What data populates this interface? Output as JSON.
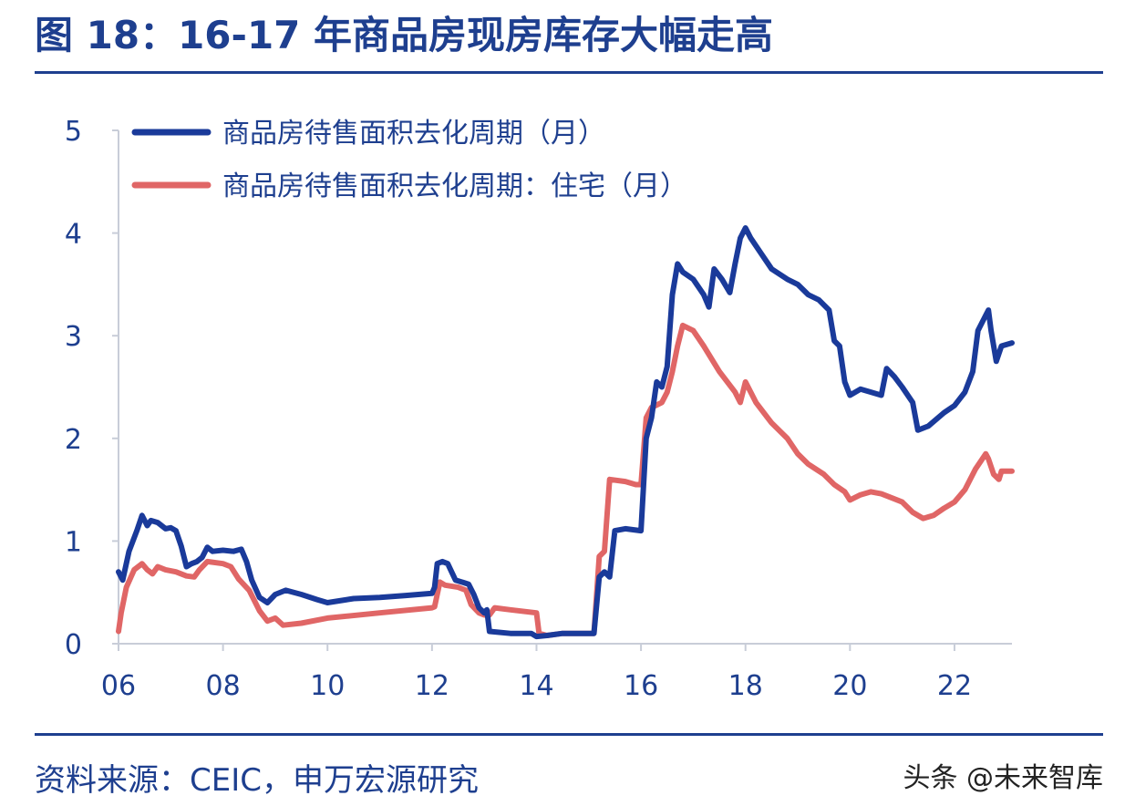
{
  "header": {
    "title": "图 18：16-17 年商品房现房库存大幅走高"
  },
  "footer": {
    "source": "资料来源：CEIC，申万宏源研究",
    "watermark": "头条 @未来智库"
  },
  "colors": {
    "brand": "#1e3f8f",
    "series_total": "#1a3a9a",
    "series_residential": "#e06666"
  },
  "chart_data": {
    "type": "line",
    "title": "",
    "xlabel": "",
    "ylabel": "",
    "xlim": [
      2006,
      2023.1
    ],
    "ylim": [
      0,
      5
    ],
    "x_ticks": [
      {
        "value": 2006,
        "label": "06"
      },
      {
        "value": 2008,
        "label": "08"
      },
      {
        "value": 2010,
        "label": "10"
      },
      {
        "value": 2012,
        "label": "12"
      },
      {
        "value": 2014,
        "label": "14"
      },
      {
        "value": 2016,
        "label": "16"
      },
      {
        "value": 2018,
        "label": "18"
      },
      {
        "value": 2020,
        "label": "20"
      },
      {
        "value": 2022,
        "label": "22"
      }
    ],
    "y_ticks": [
      {
        "value": 0,
        "label": "0"
      },
      {
        "value": 1,
        "label": "1"
      },
      {
        "value": 2,
        "label": "2"
      },
      {
        "value": 3,
        "label": "3"
      },
      {
        "value": 4,
        "label": "4"
      },
      {
        "value": 5,
        "label": "5"
      }
    ],
    "grid": false,
    "legend_position": "top-left",
    "series": [
      {
        "name": "商品房待售面积去化周期（月）",
        "color": "#1a3a9a",
        "points": [
          [
            2006.0,
            0.7
          ],
          [
            2006.08,
            0.62
          ],
          [
            2006.2,
            0.9
          ],
          [
            2006.35,
            1.1
          ],
          [
            2006.45,
            1.25
          ],
          [
            2006.55,
            1.15
          ],
          [
            2006.62,
            1.2
          ],
          [
            2006.75,
            1.18
          ],
          [
            2006.9,
            1.12
          ],
          [
            2007.0,
            1.13
          ],
          [
            2007.1,
            1.1
          ],
          [
            2007.2,
            0.95
          ],
          [
            2007.3,
            0.75
          ],
          [
            2007.4,
            0.78
          ],
          [
            2007.5,
            0.8
          ],
          [
            2007.6,
            0.84
          ],
          [
            2007.7,
            0.94
          ],
          [
            2007.8,
            0.9
          ],
          [
            2008.0,
            0.91
          ],
          [
            2008.2,
            0.9
          ],
          [
            2008.35,
            0.92
          ],
          [
            2008.45,
            0.8
          ],
          [
            2008.55,
            0.62
          ],
          [
            2008.7,
            0.45
          ],
          [
            2008.85,
            0.4
          ],
          [
            2009.0,
            0.48
          ],
          [
            2009.2,
            0.52
          ],
          [
            2009.5,
            0.48
          ],
          [
            2009.8,
            0.43
          ],
          [
            2010.0,
            0.4
          ],
          [
            2010.5,
            0.44
          ],
          [
            2011.0,
            0.45
          ],
          [
            2011.5,
            0.47
          ],
          [
            2012.0,
            0.49
          ],
          [
            2012.05,
            0.55
          ],
          [
            2012.1,
            0.78
          ],
          [
            2012.2,
            0.8
          ],
          [
            2012.3,
            0.78
          ],
          [
            2012.45,
            0.62
          ],
          [
            2012.7,
            0.58
          ],
          [
            2012.8,
            0.48
          ],
          [
            2012.9,
            0.35
          ],
          [
            2013.0,
            0.3
          ],
          [
            2013.05,
            0.33
          ],
          [
            2013.1,
            0.12
          ],
          [
            2013.5,
            0.1
          ],
          [
            2013.9,
            0.1
          ],
          [
            2014.0,
            0.07
          ],
          [
            2014.2,
            0.08
          ],
          [
            2014.5,
            0.1
          ],
          [
            2015.0,
            0.1
          ],
          [
            2015.1,
            0.1
          ],
          [
            2015.2,
            0.65
          ],
          [
            2015.3,
            0.7
          ],
          [
            2015.4,
            0.65
          ],
          [
            2015.5,
            1.1
          ],
          [
            2015.7,
            1.12
          ],
          [
            2016.0,
            1.1
          ],
          [
            2016.1,
            2.0
          ],
          [
            2016.2,
            2.2
          ],
          [
            2016.3,
            2.55
          ],
          [
            2016.4,
            2.5
          ],
          [
            2016.5,
            2.7
          ],
          [
            2016.6,
            3.4
          ],
          [
            2016.7,
            3.7
          ],
          [
            2016.8,
            3.62
          ],
          [
            2017.0,
            3.55
          ],
          [
            2017.2,
            3.4
          ],
          [
            2017.3,
            3.28
          ],
          [
            2017.4,
            3.65
          ],
          [
            2017.55,
            3.55
          ],
          [
            2017.7,
            3.42
          ],
          [
            2017.8,
            3.7
          ],
          [
            2017.9,
            3.95
          ],
          [
            2018.0,
            4.05
          ],
          [
            2018.1,
            3.95
          ],
          [
            2018.3,
            3.8
          ],
          [
            2018.5,
            3.65
          ],
          [
            2018.8,
            3.55
          ],
          [
            2019.0,
            3.5
          ],
          [
            2019.2,
            3.4
          ],
          [
            2019.4,
            3.35
          ],
          [
            2019.6,
            3.25
          ],
          [
            2019.7,
            2.95
          ],
          [
            2019.8,
            2.9
          ],
          [
            2019.9,
            2.55
          ],
          [
            2020.0,
            2.42
          ],
          [
            2020.2,
            2.48
          ],
          [
            2020.4,
            2.45
          ],
          [
            2020.6,
            2.42
          ],
          [
            2020.7,
            2.68
          ],
          [
            2020.85,
            2.6
          ],
          [
            2021.0,
            2.5
          ],
          [
            2021.2,
            2.35
          ],
          [
            2021.3,
            2.08
          ],
          [
            2021.5,
            2.12
          ],
          [
            2021.8,
            2.25
          ],
          [
            2022.0,
            2.32
          ],
          [
            2022.2,
            2.45
          ],
          [
            2022.35,
            2.65
          ],
          [
            2022.45,
            3.05
          ],
          [
            2022.6,
            3.2
          ],
          [
            2022.65,
            3.25
          ],
          [
            2022.7,
            3.05
          ],
          [
            2022.8,
            2.75
          ],
          [
            2022.9,
            2.9
          ],
          [
            2023.1,
            2.93
          ]
        ]
      },
      {
        "name": "商品房待售面积去化周期：住宅（月）",
        "color": "#e06666",
        "points": [
          [
            2006.0,
            0.12
          ],
          [
            2006.05,
            0.3
          ],
          [
            2006.15,
            0.55
          ],
          [
            2006.3,
            0.72
          ],
          [
            2006.45,
            0.78
          ],
          [
            2006.55,
            0.72
          ],
          [
            2006.65,
            0.68
          ],
          [
            2006.75,
            0.75
          ],
          [
            2006.9,
            0.72
          ],
          [
            2007.1,
            0.7
          ],
          [
            2007.3,
            0.66
          ],
          [
            2007.45,
            0.65
          ],
          [
            2007.55,
            0.72
          ],
          [
            2007.7,
            0.8
          ],
          [
            2008.0,
            0.78
          ],
          [
            2008.15,
            0.75
          ],
          [
            2008.3,
            0.63
          ],
          [
            2008.5,
            0.52
          ],
          [
            2008.7,
            0.32
          ],
          [
            2008.85,
            0.22
          ],
          [
            2009.0,
            0.25
          ],
          [
            2009.15,
            0.18
          ],
          [
            2009.5,
            0.2
          ],
          [
            2010.0,
            0.25
          ],
          [
            2011.0,
            0.3
          ],
          [
            2012.0,
            0.35
          ],
          [
            2012.05,
            0.36
          ],
          [
            2012.15,
            0.6
          ],
          [
            2012.25,
            0.57
          ],
          [
            2012.5,
            0.55
          ],
          [
            2012.65,
            0.52
          ],
          [
            2012.75,
            0.38
          ],
          [
            2012.9,
            0.3
          ],
          [
            2013.0,
            0.28
          ],
          [
            2013.1,
            0.28
          ],
          [
            2013.2,
            0.35
          ],
          [
            2013.5,
            0.33
          ],
          [
            2014.0,
            0.3
          ],
          [
            2014.05,
            0.1
          ],
          [
            2014.2,
            0.08
          ],
          [
            2014.5,
            0.1
          ],
          [
            2015.0,
            0.1
          ],
          [
            2015.1,
            0.1
          ],
          [
            2015.2,
            0.85
          ],
          [
            2015.3,
            0.9
          ],
          [
            2015.4,
            1.6
          ],
          [
            2015.7,
            1.58
          ],
          [
            2015.9,
            1.55
          ],
          [
            2016.0,
            1.55
          ],
          [
            2016.1,
            2.2
          ],
          [
            2016.2,
            2.3
          ],
          [
            2016.4,
            2.35
          ],
          [
            2016.5,
            2.45
          ],
          [
            2016.6,
            2.65
          ],
          [
            2016.7,
            2.9
          ],
          [
            2016.8,
            3.1
          ],
          [
            2017.0,
            3.05
          ],
          [
            2017.2,
            2.9
          ],
          [
            2017.5,
            2.65
          ],
          [
            2017.8,
            2.45
          ],
          [
            2017.9,
            2.35
          ],
          [
            2018.0,
            2.55
          ],
          [
            2018.2,
            2.35
          ],
          [
            2018.5,
            2.15
          ],
          [
            2018.8,
            2.0
          ],
          [
            2019.0,
            1.85
          ],
          [
            2019.2,
            1.75
          ],
          [
            2019.5,
            1.65
          ],
          [
            2019.7,
            1.55
          ],
          [
            2019.9,
            1.48
          ],
          [
            2020.0,
            1.4
          ],
          [
            2020.2,
            1.45
          ],
          [
            2020.4,
            1.48
          ],
          [
            2020.6,
            1.46
          ],
          [
            2020.8,
            1.42
          ],
          [
            2021.0,
            1.38
          ],
          [
            2021.2,
            1.28
          ],
          [
            2021.4,
            1.22
          ],
          [
            2021.6,
            1.25
          ],
          [
            2021.8,
            1.32
          ],
          [
            2022.0,
            1.38
          ],
          [
            2022.2,
            1.5
          ],
          [
            2022.4,
            1.7
          ],
          [
            2022.6,
            1.85
          ],
          [
            2022.65,
            1.8
          ],
          [
            2022.75,
            1.65
          ],
          [
            2022.85,
            1.6
          ],
          [
            2022.9,
            1.68
          ],
          [
            2023.1,
            1.68
          ]
        ]
      }
    ]
  }
}
